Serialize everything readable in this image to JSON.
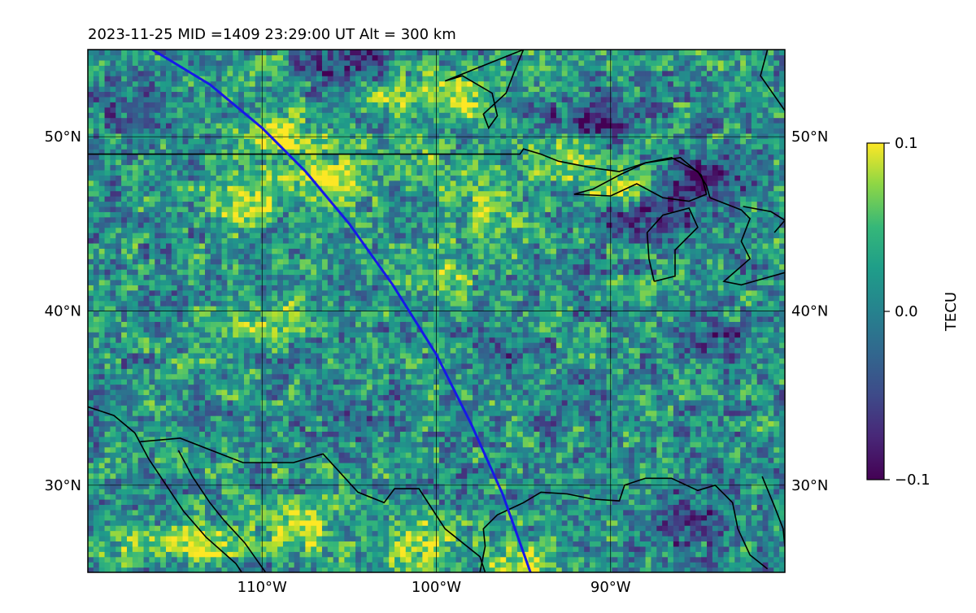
{
  "chart_data": {
    "type": "heatmap",
    "title": "2023-11-25  MID =1409    23:29:00  UT  Alt = 300 km",
    "projection": "lon-lat map",
    "xlim": [
      -120,
      -80
    ],
    "ylim": [
      25,
      55
    ],
    "grid": true,
    "x_ticks": [
      {
        "value": -110,
        "label": "110°W"
      },
      {
        "value": -100,
        "label": "100°W"
      },
      {
        "value": -90,
        "label": "90°W"
      }
    ],
    "y_ticks_left": [
      {
        "value": 50,
        "label": "50°N"
      },
      {
        "value": 40,
        "label": "40°N"
      },
      {
        "value": 30,
        "label": "30°N"
      }
    ],
    "y_ticks_right": [
      {
        "value": 50,
        "label": "50°N"
      },
      {
        "value": 40,
        "label": "40°N"
      },
      {
        "value": 30,
        "label": "30°N"
      }
    ],
    "colorbar": {
      "label": "TECU",
      "colormap": "viridis",
      "min": -0.1,
      "max": 0.1,
      "ticks": [
        {
          "value": 0.1,
          "label": "0.1"
        },
        {
          "value": 0.0,
          "label": "0.0"
        },
        {
          "value": -0.1,
          "label": "−0.1"
        }
      ]
    },
    "features": [
      {
        "lon": -106,
        "lat": 47.5,
        "value": 0.09
      },
      {
        "lon": -111,
        "lat": 46.5,
        "value": 0.08
      },
      {
        "lon": -99,
        "lat": 52.5,
        "value": 0.09
      },
      {
        "lon": -103,
        "lat": 52.5,
        "value": 0.07
      },
      {
        "lon": -109,
        "lat": 50.0,
        "value": 0.08
      },
      {
        "lon": -101,
        "lat": 48.5,
        "value": 0.05
      },
      {
        "lon": -89,
        "lat": 47.2,
        "value": 0.08
      },
      {
        "lon": -93,
        "lat": 49.0,
        "value": 0.06
      },
      {
        "lon": -85,
        "lat": 47.5,
        "value": -0.09
      },
      {
        "lon": -88,
        "lat": 45.5,
        "value": -0.09
      },
      {
        "lon": -91,
        "lat": 51.0,
        "value": -0.08
      },
      {
        "lon": -105,
        "lat": 54.0,
        "value": -0.09
      },
      {
        "lon": -112,
        "lat": 53.5,
        "value": 0.03
      },
      {
        "lon": -117,
        "lat": 52.0,
        "value": -0.04
      },
      {
        "lon": -84,
        "lat": 38.0,
        "value": -0.05
      },
      {
        "lon": -91,
        "lat": 35.0,
        "value": -0.04
      },
      {
        "lon": -86,
        "lat": 28.0,
        "value": -0.06
      },
      {
        "lon": -114,
        "lat": 26.5,
        "value": 0.09
      },
      {
        "lon": -118,
        "lat": 26.0,
        "value": 0.06
      },
      {
        "lon": -108,
        "lat": 27.5,
        "value": 0.08
      },
      {
        "lon": -101,
        "lat": 26.5,
        "value": 0.07
      },
      {
        "lon": -95,
        "lat": 25.5,
        "value": 0.07
      },
      {
        "lon": -116,
        "lat": 25.2,
        "value": -0.08
      },
      {
        "lon": -110,
        "lat": 39.5,
        "value": 0.06
      },
      {
        "lon": -100,
        "lat": 42.0,
        "value": 0.04
      },
      {
        "lon": -97,
        "lat": 45.5,
        "value": 0.05
      },
      {
        "lon": -96,
        "lat": 38.0,
        "value": -0.03
      },
      {
        "lon": -104,
        "lat": 34.0,
        "value": -0.03
      },
      {
        "lon": -112,
        "lat": 36.0,
        "value": 0.02
      }
    ],
    "ground_track": [
      [
        -116.3,
        55.0
      ],
      [
        -113.0,
        53.0
      ],
      [
        -110.0,
        50.5
      ],
      [
        -107.5,
        48.0
      ],
      [
        -105.0,
        45.0
      ],
      [
        -102.5,
        41.5
      ],
      [
        -100.0,
        37.5
      ],
      [
        -98.0,
        33.5
      ],
      [
        -96.2,
        29.5
      ],
      [
        -94.6,
        25.0
      ]
    ],
    "coastlines": [
      [
        [
          -120,
          49.0
        ],
        [
          -95.2,
          49.0
        ],
        [
          -95.0,
          49.3
        ],
        [
          -94.0,
          49.0
        ],
        [
          -93.0,
          48.6
        ],
        [
          -91.0,
          48.2
        ],
        [
          -89.5,
          48.0
        ],
        [
          -88.0,
          48.5
        ],
        [
          -86.5,
          48.8
        ],
        [
          -85.0,
          48.0
        ],
        [
          -84.5,
          47.2
        ],
        [
          -84.3,
          46.5
        ]
      ],
      [
        [
          -92.1,
          46.7
        ],
        [
          -91.0,
          47.0
        ],
        [
          -89.5,
          47.8
        ],
        [
          -88.0,
          48.5
        ],
        [
          -86.0,
          48.8
        ],
        [
          -84.8,
          47.8
        ],
        [
          -84.5,
          46.7
        ],
        [
          -85.5,
          46.3
        ],
        [
          -87.0,
          46.5
        ],
        [
          -88.5,
          47.3
        ],
        [
          -90.0,
          46.6
        ],
        [
          -92.1,
          46.7
        ]
      ],
      [
        [
          -87.5,
          41.7
        ],
        [
          -87.8,
          43.0
        ],
        [
          -87.9,
          44.5
        ],
        [
          -87.0,
          45.5
        ],
        [
          -85.5,
          45.9
        ],
        [
          -85.0,
          44.8
        ],
        [
          -86.3,
          43.5
        ],
        [
          -86.3,
          42.0
        ],
        [
          -87.5,
          41.7
        ]
      ],
      [
        [
          -84.3,
          46.5
        ],
        [
          -82.5,
          45.8
        ],
        [
          -82.0,
          45.3
        ],
        [
          -82.5,
          44.0
        ],
        [
          -82.0,
          43.0
        ],
        [
          -83.5,
          41.7
        ],
        [
          -82.5,
          41.5
        ],
        [
          -80.0,
          42.2
        ]
      ],
      [
        [
          -82.4,
          46.0
        ],
        [
          -80.8,
          45.7
        ],
        [
          -80.0,
          45.2
        ],
        [
          -80.6,
          44.5
        ]
      ],
      [
        [
          -95.0,
          55.0
        ],
        [
          -95.5,
          53.8
        ],
        [
          -96.0,
          52.5
        ],
        [
          -97.3,
          51.3
        ],
        [
          -97.0,
          50.5
        ],
        [
          -96.5,
          51.2
        ],
        [
          -96.8,
          52.5
        ],
        [
          -98.5,
          53.5
        ],
        [
          -99.5,
          53.2
        ],
        [
          -97.5,
          54.0
        ],
        [
          -95.0,
          55.0
        ]
      ],
      [
        [
          -81.0,
          55.0
        ],
        [
          -81.4,
          53.5
        ],
        [
          -80.0,
          51.5
        ]
      ],
      [
        [
          -120,
          34.5
        ],
        [
          -118.5,
          34.0
        ],
        [
          -117.3,
          33.0
        ],
        [
          -116.5,
          31.5
        ],
        [
          -115.5,
          30.0
        ],
        [
          -114.5,
          28.5
        ],
        [
          -113.2,
          27.0
        ],
        [
          -111.5,
          25.5
        ],
        [
          -110.5,
          24.0
        ]
      ],
      [
        [
          -114.8,
          32.0
        ],
        [
          -114.0,
          30.5
        ],
        [
          -113.0,
          29.0
        ],
        [
          -112.2,
          28.0
        ],
        [
          -111.0,
          26.7
        ],
        [
          -109.8,
          25.0
        ]
      ],
      [
        [
          -117.0,
          32.5
        ],
        [
          -114.7,
          32.7
        ],
        [
          -111.1,
          31.3
        ],
        [
          -108.2,
          31.3
        ],
        [
          -106.5,
          31.8
        ],
        [
          -104.5,
          29.6
        ],
        [
          -103.0,
          29.0
        ],
        [
          -102.4,
          29.8
        ],
        [
          -101.0,
          29.8
        ],
        [
          -99.5,
          27.5
        ],
        [
          -97.5,
          25.9
        ],
        [
          -97.2,
          25.0
        ]
      ],
      [
        [
          -97.5,
          25.0
        ],
        [
          -97.2,
          26.5
        ],
        [
          -97.3,
          27.5
        ],
        [
          -96.5,
          28.3
        ],
        [
          -95.0,
          29.0
        ],
        [
          -94.0,
          29.6
        ],
        [
          -92.5,
          29.5
        ],
        [
          -91.0,
          29.2
        ],
        [
          -89.5,
          29.1
        ],
        [
          -89.2,
          30.0
        ],
        [
          -88.0,
          30.4
        ],
        [
          -86.5,
          30.4
        ],
        [
          -85.0,
          29.7
        ],
        [
          -84.0,
          30.0
        ],
        [
          -83.0,
          29.0
        ],
        [
          -82.7,
          27.5
        ],
        [
          -82.0,
          26.0
        ],
        [
          -81.0,
          25.2
        ]
      ],
      [
        [
          -80.0,
          26.5
        ],
        [
          -80.1,
          27.5
        ],
        [
          -80.6,
          28.8
        ],
        [
          -81.3,
          30.5
        ]
      ]
    ]
  }
}
